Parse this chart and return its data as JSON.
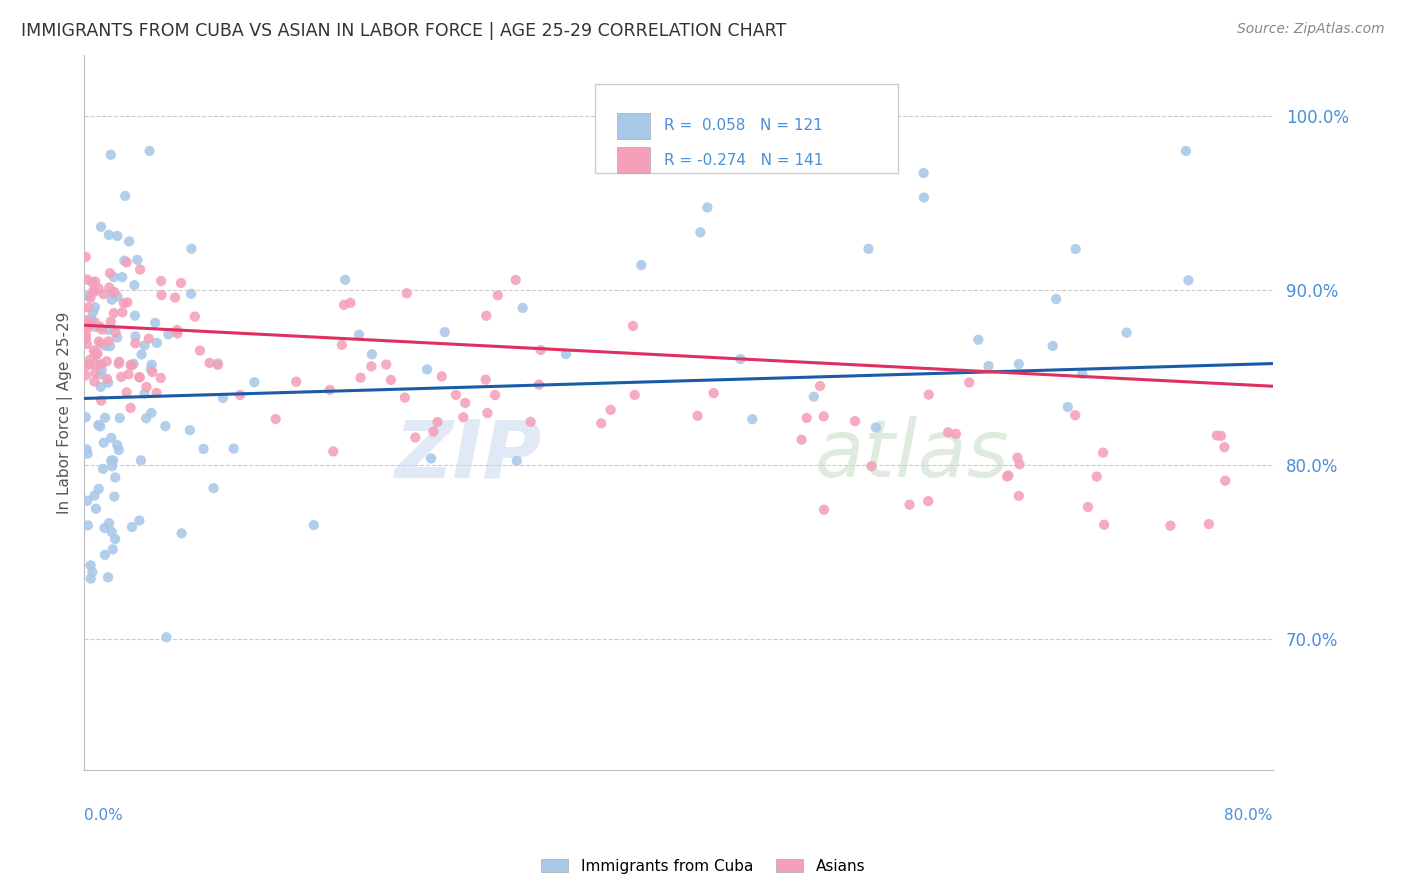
{
  "title": "IMMIGRANTS FROM CUBA VS ASIAN IN LABOR FORCE | AGE 25-29 CORRELATION CHART",
  "source": "Source: ZipAtlas.com",
  "ylabel": "In Labor Force | Age 25-29",
  "ytick_values": [
    0.7,
    0.8,
    0.9,
    1.0
  ],
  "xmin": 0.0,
  "xmax": 0.8,
  "ymin": 0.625,
  "ymax": 1.035,
  "r_cuba": 0.058,
  "n_cuba": 121,
  "r_asian": -0.274,
  "n_asian": 141,
  "color_cuba": "#a8c8e8",
  "color_asian": "#f4a0b8",
  "color_cuba_line": "#1a5ca8",
  "color_asian_line": "#e03060",
  "background_color": "#ffffff",
  "grid_color": "#cccccc",
  "title_color": "#333333",
  "axis_label_color": "#4a90d9",
  "cuba_line_y0": 0.838,
  "cuba_line_y1": 0.858,
  "asian_line_y0": 0.88,
  "asian_line_y1": 0.845
}
